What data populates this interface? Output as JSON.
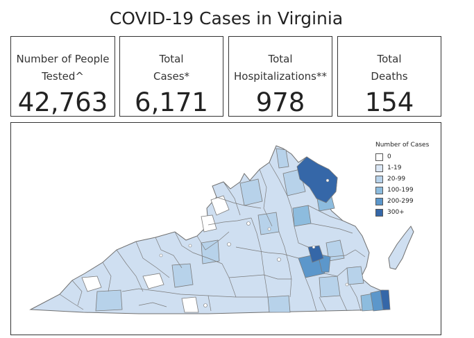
{
  "title": "COVID-19 Cases in Virginia",
  "cards": [
    {
      "label_line1": "Number of People",
      "label_line2": "Tested^",
      "value": "42,763"
    },
    {
      "label_line1": "Total",
      "label_line2": "Cases*",
      "value": "6,171"
    },
    {
      "label_line1": "Total",
      "label_line2": "Hospitalizations**",
      "value": "978"
    },
    {
      "label_line1": "Total",
      "label_line2": "Deaths",
      "value": "154"
    }
  ],
  "legend": {
    "title": "Number of Cases",
    "items": [
      {
        "label": "0",
        "color": "#ffffff"
      },
      {
        "label": "1-19",
        "color": "#dbe7f5"
      },
      {
        "label": "20-99",
        "color": "#b7d2ea"
      },
      {
        "label": "100-199",
        "color": "#8dbcde"
      },
      {
        "label": "200-299",
        "color": "#5c97cb"
      },
      {
        "label": "300+",
        "color": "#3567a8"
      }
    ]
  },
  "colors": {
    "state_base": "#cfdff1",
    "border": "#7a7a7a"
  }
}
